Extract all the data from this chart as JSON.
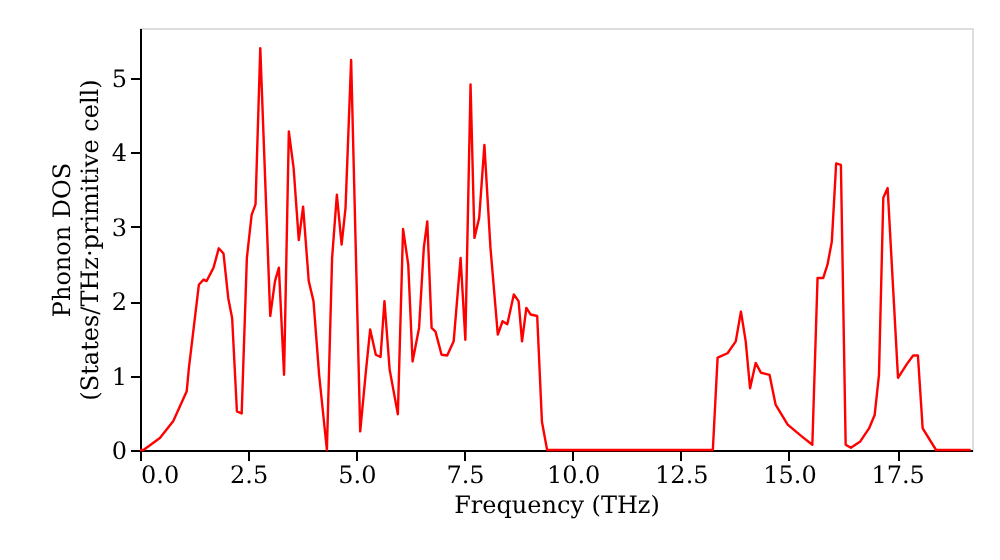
{
  "chart_data": {
    "type": "line",
    "xlabel": "Frequency (THz)",
    "ylabel": "Phonon DOS\n(States/THz·primitive cell)",
    "grid": false,
    "marker": "none",
    "line_style": "solid",
    "xlim": [
      0,
      19.23
    ],
    "ylim": [
      0,
      5.67
    ],
    "xticks": [
      {
        "value": 0,
        "label": "0.0"
      },
      {
        "value": 2.5,
        "label": "2.5"
      },
      {
        "value": 5,
        "label": "5.0"
      },
      {
        "value": 7.5,
        "label": "7.5"
      },
      {
        "value": 10,
        "label": "10.0"
      },
      {
        "value": 12.5,
        "label": "12.5"
      },
      {
        "value": 15,
        "label": "15.0"
      },
      {
        "value": 17.5,
        "label": "17.5"
      }
    ],
    "yticks": [
      0,
      1,
      2,
      3,
      4,
      5
    ],
    "series": [
      {
        "color": "#ff0000",
        "x": [
          0.0,
          0.08,
          0.46,
          0.77,
          1.08,
          1.13,
          1.36,
          1.47,
          1.54,
          1.7,
          1.82,
          1.93,
          2.04,
          2.13,
          2.24,
          2.35,
          2.47,
          2.58,
          2.67,
          2.78,
          3.01,
          3.12,
          3.21,
          3.33,
          3.44,
          3.55,
          3.67,
          3.77,
          3.9,
          4.01,
          4.14,
          4.32,
          4.44,
          4.55,
          4.66,
          4.75,
          4.88,
          5.09,
          5.22,
          5.32,
          5.45,
          5.56,
          5.65,
          5.77,
          5.96,
          6.08,
          6.2,
          6.3,
          6.45,
          6.56,
          6.64,
          6.74,
          6.83,
          6.97,
          7.1,
          7.25,
          7.41,
          7.52,
          7.64,
          7.73,
          7.84,
          7.96,
          8.1,
          8.27,
          8.38,
          8.49,
          8.64,
          8.75,
          8.83,
          8.93,
          9.03,
          9.18,
          9.29,
          9.41,
          13.24,
          13.35,
          13.58,
          13.77,
          13.89,
          14.0,
          14.1,
          14.23,
          14.35,
          14.55,
          14.69,
          14.97,
          15.28,
          15.54,
          15.66,
          15.79,
          15.89,
          15.99,
          16.09,
          16.2,
          16.31,
          16.43,
          16.64,
          16.85,
          16.98,
          17.08,
          17.18,
          17.28,
          17.52,
          17.72,
          17.87,
          17.98,
          18.09,
          18.4,
          19.2
        ],
        "values": [
          0.0,
          0.0,
          0.16,
          0.39,
          0.79,
          1.1,
          2.22,
          2.29,
          2.27,
          2.45,
          2.71,
          2.64,
          2.04,
          1.77,
          0.52,
          0.49,
          2.58,
          3.16,
          3.3,
          5.4,
          1.8,
          2.27,
          2.45,
          1.01,
          4.28,
          3.79,
          2.82,
          3.27,
          2.27,
          2.0,
          1.01,
          0.0,
          2.58,
          3.43,
          2.76,
          3.25,
          5.24,
          0.25,
          1.05,
          1.62,
          1.28,
          1.25,
          2.0,
          1.08,
          0.48,
          2.97,
          2.49,
          1.19,
          1.64,
          2.72,
          3.07,
          1.64,
          1.59,
          1.28,
          1.27,
          1.46,
          2.58,
          1.48,
          4.91,
          2.85,
          3.12,
          4.1,
          2.72,
          1.55,
          1.73,
          1.69,
          2.09,
          2.0,
          1.46,
          1.91,
          1.82,
          1.8,
          0.38,
          0.0,
          0.0,
          1.24,
          1.3,
          1.46,
          1.86,
          1.46,
          0.83,
          1.17,
          1.04,
          1.01,
          0.61,
          0.34,
          0.19,
          0.07,
          2.31,
          2.31,
          2.49,
          2.8,
          3.85,
          3.83,
          0.07,
          0.03,
          0.11,
          0.29,
          0.47,
          1.01,
          3.39,
          3.52,
          0.97,
          1.15,
          1.27,
          1.27,
          0.29,
          0.0,
          0.0
        ]
      }
    ]
  }
}
